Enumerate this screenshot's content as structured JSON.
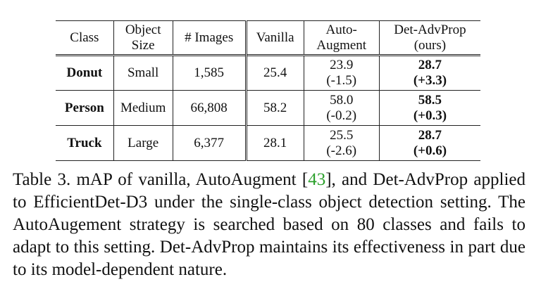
{
  "table": {
    "headers": {
      "class": "Class",
      "object_size_line1": "Object",
      "object_size_line2": "Size",
      "images": "# Images",
      "vanilla": "Vanilla",
      "autoaug_line1": "Auto-",
      "autoaug_line2": "Augment",
      "detadv_line1": "Det-AdvProp",
      "detadv_line2": "(ours)"
    },
    "rows": [
      {
        "class": "Donut",
        "size": "Small",
        "images": "1,585",
        "vanilla": "25.4",
        "auto": "23.9",
        "auto_delta": "(-1.5)",
        "det": "28.7",
        "det_delta": "(+3.3)"
      },
      {
        "class": "Person",
        "size": "Medium",
        "images": "66,808",
        "vanilla": "58.2",
        "auto": "58.0",
        "auto_delta": "(-0.2)",
        "det": "58.5",
        "det_delta": "(+0.3)"
      },
      {
        "class": "Truck",
        "size": "Large",
        "images": "6,377",
        "vanilla": "28.1",
        "auto": "25.5",
        "auto_delta": "(-2.6)",
        "det": "28.7",
        "det_delta": "(+0.6)"
      }
    ]
  },
  "caption": {
    "before_ref": "Table 3. mAP of vanilla, AutoAugment [",
    "ref": "43",
    "after_ref": "], and Det-AdvProp applied to EfficientDet-D3 under the single-class object detection setting. The AutoAugement strategy is searched based on 80 classes and fails to adapt to this setting. Det-AdvProp maintains its effectiveness in part due to its model-dependent nature."
  },
  "colors": {
    "reference_link": "#2ca02c"
  }
}
